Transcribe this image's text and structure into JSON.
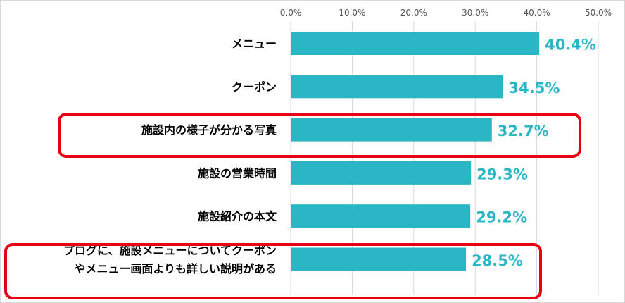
{
  "chart_data": {
    "type": "bar",
    "orientation": "horizontal",
    "categories": [
      [
        "メニュー"
      ],
      [
        "クーポン"
      ],
      [
        "施設内の様子が分かる写真"
      ],
      [
        "施設の営業時間"
      ],
      [
        "施設紹介の本文"
      ],
      [
        "ブログに、施設メニューについてクーポン",
        "やメニュー画面よりも詳しい説明がある"
      ]
    ],
    "values": [
      40.4,
      34.5,
      32.7,
      29.3,
      29.2,
      28.5
    ],
    "value_labels": [
      "40.4%",
      "34.5%",
      "32.7%",
      "29.3%",
      "29.2%",
      "28.5%"
    ],
    "x_ticks": [
      "0.0%",
      "10.0%",
      "20.0%",
      "30.0%",
      "40.0%",
      "50.0%"
    ],
    "xlim": [
      0,
      50
    ],
    "x_axis_position": "top",
    "grid": true,
    "highlighted": [
      2,
      5
    ],
    "title": "",
    "xlabel": "",
    "ylabel": ""
  },
  "colors": {
    "bar": "#2bb6c6",
    "value_label": "#2bb6c6",
    "highlight_border": "#e60012",
    "grid": "#d9d9d9"
  }
}
